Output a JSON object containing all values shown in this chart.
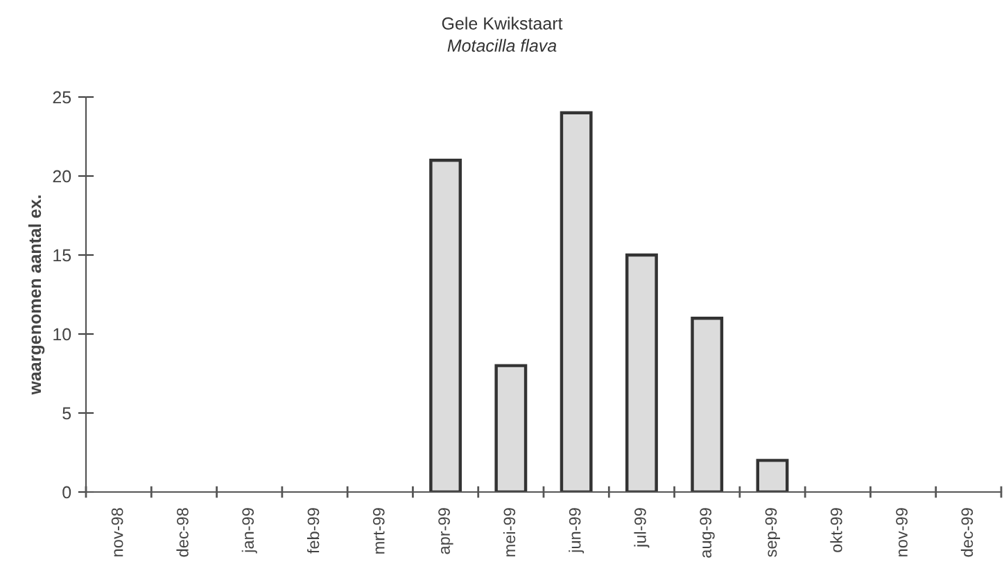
{
  "chart_data": {
    "type": "bar",
    "title": "Gele Kwikstaart",
    "subtitle": "Motacilla flava",
    "ylabel": "waargenomen aantal ex.",
    "categories": [
      "nov-98",
      "dec-98",
      "jan-99",
      "feb-99",
      "mrt-99",
      "apr-99",
      "mei-99",
      "jun-99",
      "jul-99",
      "aug-99",
      "sep-99",
      "okt-99",
      "nov-99",
      "dec-99"
    ],
    "values": [
      0,
      0,
      0,
      0,
      0,
      21,
      8,
      24,
      15,
      11,
      2,
      0,
      0,
      0
    ],
    "color": "#dcdcdc",
    "ylim": [
      0,
      25
    ],
    "yticks": [
      0,
      5,
      10,
      15,
      20,
      25
    ],
    "grid": false,
    "legend": false
  }
}
